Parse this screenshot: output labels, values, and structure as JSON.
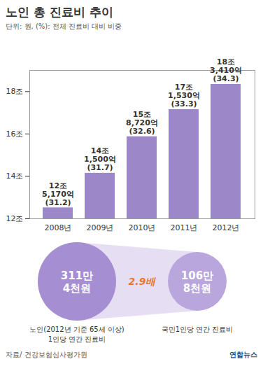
{
  "chart_data": {
    "type": "bar",
    "title": "노인 총 진료비 추이",
    "subtitle": "단위: 원, (%): 전체 진료비 대비 비중",
    "categories": [
      "2008년",
      "2009년",
      "2010년",
      "2011년",
      "2012년"
    ],
    "values": [
      12.517,
      14.15,
      15.872,
      17.153,
      18.341
    ],
    "value_labels": [
      "12조 5,170억",
      "14조 1,500억",
      "15조 8,720억",
      "17조 1,530억",
      "18조 3,410억"
    ],
    "share_labels": [
      "(31.2)",
      "(31.7)",
      "(32.6)",
      "(33.3)",
      "(34.3)"
    ],
    "color": "#9c88c9",
    "ylim": [
      12,
      19
    ],
    "yticks": [
      {
        "value": 12,
        "label": "12조"
      },
      {
        "value": 14,
        "label": "14조"
      },
      {
        "value": 16,
        "label": "16조"
      },
      {
        "value": 18,
        "label": "18조"
      }
    ],
    "grid": false,
    "data_labels": true,
    "comparison": {
      "ratio_label": "2.9배",
      "items": [
        {
          "value_lines": [
            "311만",
            "4천원"
          ],
          "label_lines": [
            "노인(2012년 기준 65세 이상)",
            "1인당 연간 진료비"
          ],
          "color": "#a68ed2"
        },
        {
          "value_lines": [
            "106만",
            "8천원"
          ],
          "label_lines": [
            "국민1인당 연간 진료비"
          ],
          "color": "#b9a6dc"
        }
      ]
    },
    "source": "자료/ 건강보험심사평가원",
    "credit": "연합뉴스"
  }
}
